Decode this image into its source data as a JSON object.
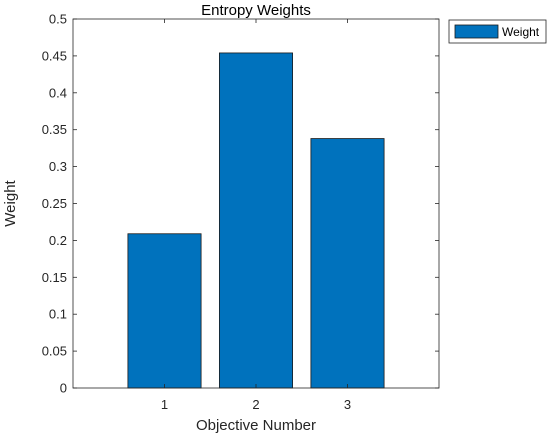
{
  "chart_data": {
    "type": "bar",
    "title": "Entropy Weights",
    "xlabel": "Objective Number",
    "ylabel": "Weight",
    "categories": [
      "1",
      "2",
      "3"
    ],
    "series": [
      {
        "name": "Weight",
        "values": [
          0.209,
          0.454,
          0.338
        ],
        "color": "#0072BD"
      }
    ],
    "xlim": [
      0,
      4
    ],
    "ylim": [
      0,
      0.5
    ],
    "yticks": [
      "0",
      "0.05",
      "0.1",
      "0.15",
      "0.2",
      "0.25",
      "0.3",
      "0.35",
      "0.4",
      "0.45",
      "0.5"
    ],
    "grid": false,
    "legend_position": "outside-top-right"
  }
}
